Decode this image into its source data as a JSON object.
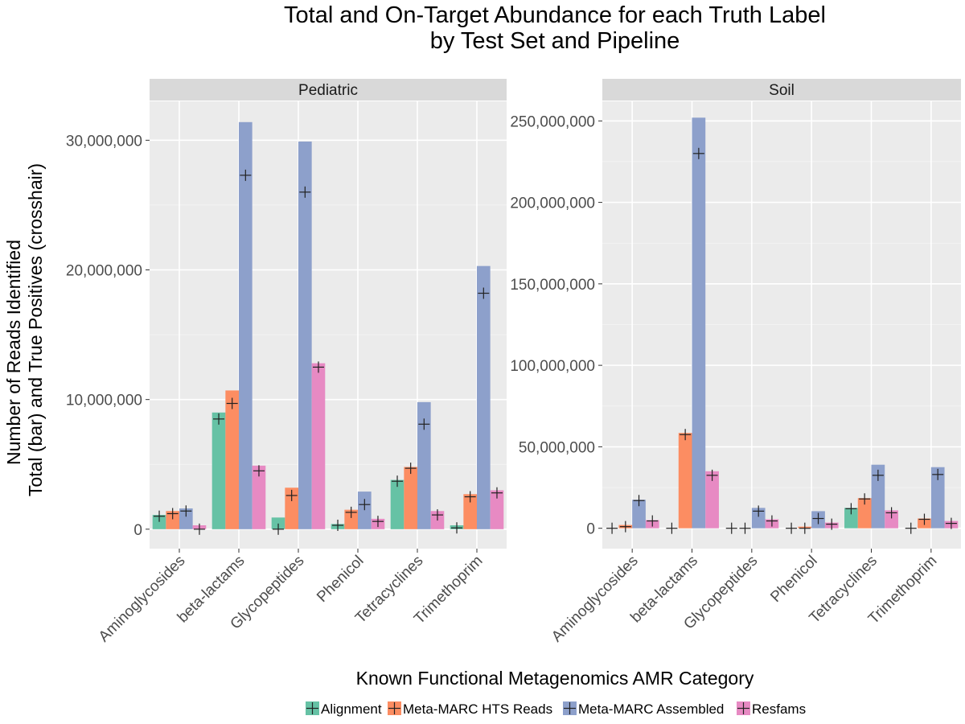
{
  "chart_data": {
    "type": "bar",
    "title": [
      "Total and On-Target Abundance for each Truth Label",
      "by Test Set and Pipeline"
    ],
    "xlabel": "Known Functional Metagenomics AMR Category",
    "ylabel": [
      "Number of Reads Identified",
      "Total (bar) and True Positives (crosshair)"
    ],
    "categories": [
      "Aminoglycosides",
      "beta-lactams",
      "Glycopeptides",
      "Phenicol",
      "Tetracyclines",
      "Trimethoprim"
    ],
    "legend": {
      "position": "bottom",
      "entries": [
        {
          "name": "Alignment",
          "color": "#66c2a5"
        },
        {
          "name": "Meta-MARC HTS Reads",
          "color": "#fc8d62"
        },
        {
          "name": "Meta-MARC Assembled",
          "color": "#8da0cb"
        },
        {
          "name": "Resfams",
          "color": "#e78ac3"
        }
      ]
    },
    "grid": true,
    "panels": [
      {
        "name": "Pediatric",
        "ylim": [
          -1500000,
          33000000
        ],
        "yticks": [
          0,
          10000000,
          20000000,
          30000000
        ],
        "ytick_labels": [
          "0",
          "10,000,000",
          "20,000,000",
          "30,000,000"
        ],
        "series": [
          {
            "name": "Alignment",
            "totals": [
              1100000,
              9000000,
              900000,
              400000,
              3800000,
              300000
            ],
            "true_positives": [
              1000000,
              8500000,
              0,
              300000,
              3700000,
              100000
            ]
          },
          {
            "name": "Meta-MARC HTS Reads",
            "totals": [
              1400000,
              10700000,
              3200000,
              1500000,
              4800000,
              2700000
            ],
            "true_positives": [
              1200000,
              9700000,
              2600000,
              1300000,
              4700000,
              2500000
            ]
          },
          {
            "name": "Meta-MARC Assembled",
            "totals": [
              1600000,
              31400000,
              29900000,
              2900000,
              9800000,
              20300000
            ],
            "true_positives": [
              1400000,
              27300000,
              26000000,
              1900000,
              8100000,
              18200000
            ]
          },
          {
            "name": "Resfams",
            "totals": [
              300000,
              4900000,
              12800000,
              800000,
              1400000,
              3000000
            ],
            "true_positives": [
              0,
              4500000,
              12500000,
              600000,
              1100000,
              2800000
            ]
          }
        ]
      },
      {
        "name": "Soil",
        "ylim": [
          -12500000,
          262000000
        ],
        "yticks": [
          0,
          50000000,
          100000000,
          150000000,
          200000000,
          250000000
        ],
        "ytick_labels": [
          "0",
          "50,000,000",
          "100,000,000",
          "150,000,000",
          "200,000,000",
          "250,000,000"
        ],
        "series": [
          {
            "name": "Alignment",
            "totals": [
              0,
              0,
              0,
              0,
              12500000,
              0
            ],
            "true_positives": [
              0,
              0,
              0,
              0,
              12000000,
              0
            ]
          },
          {
            "name": "Meta-MARC HTS Reads",
            "totals": [
              2000000,
              58500000,
              0,
              1000000,
              18500000,
              6000000
            ],
            "true_positives": [
              1000000,
              57500000,
              0,
              0,
              18000000,
              5500000
            ]
          },
          {
            "name": "Meta-MARC Assembled",
            "totals": [
              17500000,
              252000000,
              12500000,
              10500000,
              39000000,
              37500000
            ],
            "true_positives": [
              17000000,
              230000000,
              10500000,
              6000000,
              32500000,
              33000000
            ]
          },
          {
            "name": "Resfams",
            "totals": [
              5000000,
              35000000,
              5500000,
              3500000,
              11000000,
              4500000
            ],
            "true_positives": [
              4500000,
              32500000,
              4500000,
              2500000,
              9500000,
              3000000
            ]
          }
        ]
      }
    ]
  }
}
